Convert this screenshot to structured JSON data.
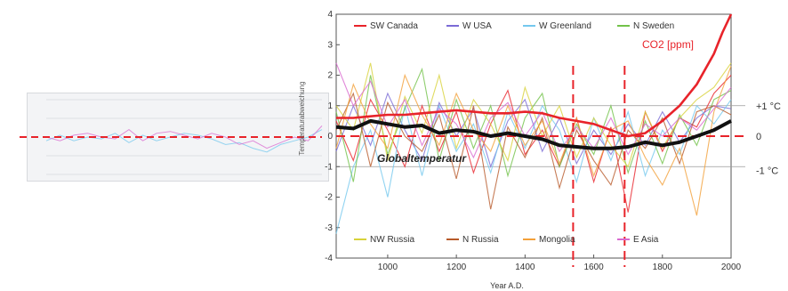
{
  "chart_data": [
    {
      "type": "line",
      "ylabel": "Temperaturabweichung",
      "xlabel": "Year A.D.",
      "xlim": [
        850,
        2000
      ],
      "ylim": [
        -4,
        4
      ],
      "x_ticks": [
        1000,
        1200,
        1400,
        1600,
        1800,
        2000
      ],
      "y_ticks": [
        4,
        3,
        2,
        1,
        0,
        -1,
        -2,
        -3,
        -4
      ],
      "grid": false,
      "legend_top": [
        {
          "name": "SW Canada",
          "color": "#e8232a"
        },
        {
          "name": "W USA",
          "color": "#7b6bd6"
        },
        {
          "name": "W Greenland",
          "color": "#74c8ee"
        },
        {
          "name": "N Sweden",
          "color": "#72c249"
        }
      ],
      "legend_bottom": [
        {
          "name": "NW Russia",
          "color": "#d8d23a"
        },
        {
          "name": "N Russia",
          "color": "#b85a2a"
        },
        {
          "name": "Mongolia",
          "color": "#f3a03a"
        },
        {
          "name": "E Asia",
          "color": "#d96ad0"
        }
      ],
      "annotations": {
        "global_temperature": "Globaltemperatur",
        "co2": "CO2 [ppm]",
        "right_scale": [
          "+1 °C",
          "0",
          "-1 °C"
        ]
      },
      "reference_lines": [
        {
          "type": "vertical",
          "x": 1540,
          "style": "dashed",
          "color": "#e8232a"
        },
        {
          "type": "vertical",
          "x": 1690,
          "style": "dashed",
          "color": "#e8232a"
        },
        {
          "type": "horizontal",
          "y": 0,
          "style": "dashed",
          "color": "#e8232a"
        }
      ],
      "series": [
        {
          "name": "Globaltemperatur",
          "color": "#111111",
          "x": [
            850,
            900,
            950,
            1000,
            1050,
            1100,
            1150,
            1200,
            1250,
            1300,
            1350,
            1400,
            1450,
            1500,
            1550,
            1600,
            1650,
            1700,
            1750,
            1800,
            1850,
            1900,
            1950,
            2000
          ],
          "y": [
            0.3,
            0.25,
            0.5,
            0.4,
            0.3,
            0.35,
            0.1,
            0.2,
            0.15,
            0.0,
            0.1,
            0.0,
            -0.1,
            -0.3,
            -0.35,
            -0.4,
            -0.4,
            -0.35,
            -0.2,
            -0.3,
            -0.2,
            0.0,
            0.2,
            0.5
          ]
        },
        {
          "name": "CO2 [ppm]",
          "color": "#e8232a",
          "x": [
            850,
            900,
            950,
            1000,
            1050,
            1100,
            1150,
            1200,
            1250,
            1300,
            1350,
            1400,
            1450,
            1500,
            1550,
            1600,
            1650,
            1700,
            1750,
            1800,
            1850,
            1900,
            1950,
            1975,
            2000
          ],
          "y": [
            0.6,
            0.6,
            0.65,
            0.7,
            0.7,
            0.75,
            0.8,
            0.85,
            0.8,
            0.75,
            0.75,
            0.8,
            0.75,
            0.6,
            0.5,
            0.4,
            0.2,
            0.0,
            0.1,
            0.5,
            1.0,
            1.7,
            2.7,
            3.4,
            4.0
          ]
        },
        {
          "name": "SW Canada",
          "color": "#e8232a",
          "x": [
            850,
            900,
            950,
            1000,
            1050,
            1100,
            1150,
            1200,
            1250,
            1300,
            1350,
            1400,
            1450,
            1500,
            1550,
            1600,
            1650,
            1700,
            1750,
            1800,
            1850,
            1900,
            1950,
            2000
          ],
          "y": [
            0.5,
            -0.8,
            1.2,
            0.2,
            -1.0,
            1.0,
            -0.5,
            0.8,
            -1.2,
            0.4,
            1.5,
            -0.6,
            0.2,
            -1.0,
            0.6,
            -1.5,
            0.3,
            -2.5,
            0.8,
            -0.5,
            0.6,
            0.3,
            1.4,
            2.0
          ]
        },
        {
          "name": "W USA",
          "color": "#7b6bd6",
          "x": [
            850,
            900,
            950,
            1000,
            1050,
            1100,
            1150,
            1200,
            1250,
            1300,
            1350,
            1400,
            1450,
            1500,
            1550,
            1600,
            1650,
            1700,
            1750,
            1800,
            1850,
            1900,
            1950,
            2000
          ],
          "y": [
            -0.5,
            1.0,
            -0.3,
            1.4,
            0.2,
            -0.8,
            1.1,
            0.0,
            0.9,
            -1.0,
            0.5,
            1.2,
            -0.5,
            0.6,
            -0.9,
            0.2,
            -0.6,
            0.4,
            -0.3,
            0.8,
            -0.2,
            0.6,
            1.0,
            0.9
          ]
        },
        {
          "name": "W Greenland",
          "color": "#74c8ee",
          "x": [
            850,
            900,
            950,
            1000,
            1050,
            1100,
            1150,
            1200,
            1250,
            1300,
            1350,
            1400,
            1450,
            1500,
            1550,
            1600,
            1650,
            1700,
            1750,
            1800,
            1850,
            1900,
            1950,
            2000
          ],
          "y": [
            -3.2,
            -1.0,
            0.2,
            -2.0,
            1.0,
            -1.3,
            1.0,
            -0.5,
            0.4,
            -1.2,
            0.8,
            -0.4,
            1.0,
            0.2,
            -1.5,
            0.6,
            -0.8,
            0.8,
            -1.3,
            0.2,
            -0.6,
            1.0,
            0.4,
            1.2
          ]
        },
        {
          "name": "N Sweden",
          "color": "#72c249",
          "x": [
            850,
            900,
            950,
            1000,
            1050,
            1100,
            1150,
            1200,
            1250,
            1300,
            1350,
            1400,
            1450,
            1500,
            1550,
            1600,
            1650,
            1700,
            1750,
            1800,
            1850,
            1900,
            1950,
            2000
          ],
          "y": [
            0.8,
            -1.5,
            2.0,
            -0.6,
            0.9,
            2.2,
            -0.8,
            1.2,
            -0.4,
            1.0,
            -1.3,
            0.6,
            1.4,
            -1.0,
            0.4,
            -0.6,
            1.0,
            -1.2,
            0.5,
            -0.9,
            0.7,
            -0.3,
            1.2,
            1.5
          ]
        },
        {
          "name": "NW Russia",
          "color": "#d8d23a",
          "x": [
            850,
            900,
            950,
            1000,
            1050,
            1100,
            1150,
            1200,
            1250,
            1300,
            1350,
            1400,
            1450,
            1500,
            1550,
            1600,
            1650,
            1700,
            1750,
            1800,
            1850,
            1900,
            1950,
            2000
          ],
          "y": [
            1.0,
            0.2,
            2.4,
            -0.8,
            1.3,
            0.1,
            2.0,
            -0.4,
            1.2,
            0.4,
            -0.8,
            1.6,
            0.0,
            1.0,
            -0.7,
            0.6,
            -0.3,
            -1.0,
            0.8,
            -0.4,
            0.6,
            1.2,
            1.6,
            2.4
          ]
        },
        {
          "name": "N Russia",
          "color": "#b85a2a",
          "x": [
            850,
            900,
            950,
            1000,
            1050,
            1100,
            1150,
            1200,
            1250,
            1300,
            1350,
            1400,
            1450,
            1500,
            1550,
            1600,
            1650,
            1700,
            1750,
            1800,
            1850,
            1900,
            1950,
            2000
          ],
          "y": [
            0.2,
            1.4,
            -1.0,
            1.1,
            0.0,
            -0.5,
            0.7,
            -1.4,
            1.0,
            -2.4,
            0.3,
            -0.7,
            0.6,
            -1.7,
            0.2,
            -0.8,
            -1.6,
            0.2,
            -0.4,
            0.6,
            -0.9,
            0.8,
            1.0,
            0.7
          ]
        },
        {
          "name": "Mongolia",
          "color": "#f3a03a",
          "x": [
            850,
            900,
            950,
            1000,
            1050,
            1100,
            1150,
            1200,
            1250,
            1300,
            1350,
            1400,
            1450,
            1500,
            1550,
            1600,
            1650,
            1700,
            1750,
            1800,
            1850,
            1900,
            1950,
            2000
          ],
          "y": [
            -0.4,
            1.7,
            0.4,
            -0.4,
            2.0,
            0.7,
            -0.3,
            1.4,
            0.2,
            -0.5,
            1.0,
            -0.3,
            0.5,
            -0.9,
            0.6,
            -1.3,
            0.2,
            0.5,
            -0.7,
            -1.6,
            -0.4,
            -2.6,
            0.8,
            2.3
          ]
        },
        {
          "name": "E Asia",
          "color": "#d96ad0",
          "x": [
            850,
            900,
            950,
            1000,
            1050,
            1100,
            1150,
            1200,
            1250,
            1300,
            1350,
            1400,
            1450,
            1500,
            1550,
            1600,
            1650,
            1700,
            1750,
            1800,
            1850,
            1900,
            1950,
            2000
          ],
          "y": [
            2.4,
            1.0,
            1.8,
            0.3,
            1.2,
            -0.3,
            0.9,
            0.4,
            -0.7,
            0.6,
            1.1,
            0.0,
            0.8,
            -0.5,
            0.3,
            -0.4,
            0.6,
            -0.6,
            0.4,
            0.0,
            0.6,
            0.2,
            0.9,
            1.6
          ]
        }
      ]
    },
    {
      "type": "line",
      "title": "",
      "ylabel": "",
      "xlim": [
        0,
        2000
      ],
      "ylim": [
        -1,
        1
      ],
      "grid": true,
      "reference_lines": [
        {
          "type": "horizontal",
          "y": 0,
          "style": "dashed",
          "color": "#e8232a"
        }
      ],
      "series": [
        {
          "color": "#74c8ee",
          "x": [
            0,
            100,
            200,
            300,
            400,
            500,
            600,
            700,
            800,
            900,
            1000,
            1100,
            1200,
            1300,
            1400,
            1500,
            1600,
            1700,
            1800,
            1900,
            2000
          ],
          "y": [
            -0.1,
            0.05,
            -0.1,
            0.0,
            -0.05,
            0.1,
            -0.15,
            0.05,
            -0.1,
            0.0,
            0.1,
            0.05,
            -0.05,
            -0.2,
            -0.15,
            -0.3,
            -0.4,
            -0.2,
            -0.1,
            0.0,
            0.2
          ]
        },
        {
          "color": "#d96ad0",
          "x": [
            0,
            100,
            200,
            300,
            400,
            500,
            600,
            700,
            800,
            900,
            1000,
            1100,
            1200,
            1300,
            1400,
            1500,
            1600,
            1700,
            1800,
            1900,
            2000
          ],
          "y": [
            0.0,
            -0.1,
            0.05,
            0.1,
            0.0,
            -0.05,
            0.2,
            -0.1,
            0.1,
            0.15,
            0.05,
            -0.05,
            0.1,
            0.0,
            -0.2,
            -0.1,
            -0.3,
            -0.15,
            0.0,
            -0.1,
            0.3
          ]
        }
      ]
    }
  ]
}
